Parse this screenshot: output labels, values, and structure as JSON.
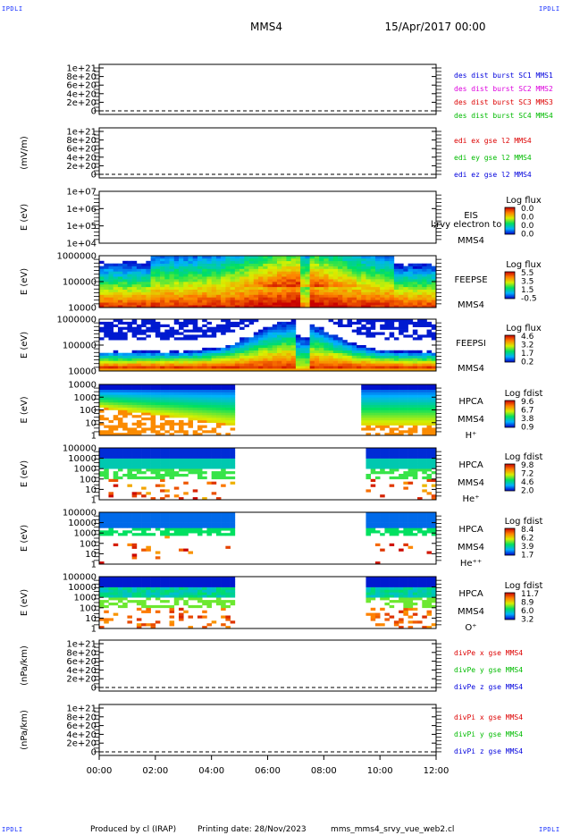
{
  "header": {
    "spacecraft": "MMS4",
    "date": "15/Apr/2017 00:00",
    "corner_label": "IPDLI"
  },
  "footer": {
    "produced_by": "Produced by cl (IRAP)",
    "printing_date": "Printing date: 28/Nov/2023",
    "script_name": "mms_mms4_srvy_vue_web2.cl"
  },
  "time_axis": {
    "ticks": [
      "00:00",
      "02:00",
      "04:00",
      "06:00",
      "08:00",
      "10:00",
      "12:00"
    ],
    "range_hours": [
      0,
      12
    ]
  },
  "colors": {
    "blue": "#0000dd",
    "magenta": "#dd00dd",
    "red": "#dd0000",
    "green": "#00bb00"
  },
  "chart_data": [
    {
      "type": "line",
      "id": "panel-des-dist",
      "ylabel": "",
      "yticks": [
        "1e+21",
        "8e+20",
        "6e+20",
        "4e+20",
        "2e+20",
        "0"
      ],
      "ylim": [
        0,
        1e+21
      ],
      "zero_dashed_line": true,
      "legend": [
        {
          "text": "des dist burst SC1 MMS1",
          "color": "#0000dd"
        },
        {
          "text": "des dist burst SC2 MMS2",
          "color": "#dd00dd"
        },
        {
          "text": "des dist burst SC3 MMS3",
          "color": "#dd0000"
        },
        {
          "text": "des dist burst SC4 MMS4",
          "color": "#00bb00"
        }
      ],
      "series": []
    },
    {
      "type": "line",
      "id": "panel-edi",
      "ylabel": "(mV/m)",
      "yticks": [
        "1e+21",
        "8e+20",
        "6e+20",
        "4e+20",
        "2e+20",
        "0"
      ],
      "ylim": [
        0,
        1e+21
      ],
      "zero_dashed_line": true,
      "legend": [
        {
          "text": "edi ex gse l2 MMS4",
          "color": "#dd0000"
        },
        {
          "text": "edi ey gse l2 MMS4",
          "color": "#00bb00"
        },
        {
          "text": "edi ez gse l2 MMS4",
          "color": "#0000dd"
        }
      ],
      "series": []
    },
    {
      "type": "heatmap",
      "id": "panel-eis",
      "ylabel": "E (eV)",
      "yticks": [
        "1e+07",
        "1e+06",
        "1e+05",
        "1e+04"
      ],
      "log_y": true,
      "right_labels": [
        "EIS",
        "MMS4"
      ],
      "overlay_text": "l;rvy electron to",
      "colorbar": {
        "title": "Log flux",
        "ticks": [
          "0.0",
          "0.0",
          "0.0",
          "0.0"
        ]
      },
      "pattern": "empty"
    },
    {
      "type": "heatmap",
      "id": "panel-feepse",
      "ylabel": "E (eV)",
      "yticks": [
        "1000000",
        "100000",
        "10000"
      ],
      "log_y": true,
      "right_labels": [
        "FEEPSE",
        "MMS4"
      ],
      "colorbar": {
        "title": "Log flux",
        "ticks": [
          "5.5",
          "3.5",
          "1.5",
          "-0.5"
        ]
      },
      "pattern": "feepse"
    },
    {
      "type": "heatmap",
      "id": "panel-feepsi",
      "ylabel": "E (eV)",
      "yticks": [
        "1000000",
        "100000",
        "10000"
      ],
      "log_y": true,
      "right_labels": [
        "FEEPSI",
        "MMS4"
      ],
      "colorbar": {
        "title": "Log flux",
        "ticks": [
          "4.6",
          "3.2",
          "1.7",
          "0.2"
        ]
      },
      "pattern": "feepsi"
    },
    {
      "type": "heatmap",
      "id": "panel-hpca-h",
      "ylabel": "E (eV)",
      "yticks": [
        "10000",
        "1000",
        "100",
        "10",
        "1"
      ],
      "log_y": true,
      "right_labels": [
        "HPCA",
        "MMS4",
        "H⁺"
      ],
      "colorbar": {
        "title": "Log fdist",
        "ticks": [
          "9.6",
          "6.7",
          "3.8",
          "0.9"
        ]
      },
      "pattern": "hpca-h",
      "gap_hours": [
        4.9,
        9.4
      ]
    },
    {
      "type": "heatmap",
      "id": "panel-hpca-he",
      "ylabel": "E (eV)",
      "yticks": [
        "100000",
        "10000",
        "1000",
        "100",
        "10",
        "1"
      ],
      "log_y": true,
      "right_labels": [
        "HPCA",
        "MMS4",
        "He⁺"
      ],
      "colorbar": {
        "title": "Log fdist",
        "ticks": [
          "9.8",
          "7.2",
          "4.6",
          "2.0"
        ]
      },
      "pattern": "hpca-he",
      "gap_hours": [
        4.9,
        9.5
      ]
    },
    {
      "type": "heatmap",
      "id": "panel-hpca-hepp",
      "ylabel": "E (eV)",
      "yticks": [
        "100000",
        "10000",
        "1000",
        "100",
        "10",
        "1"
      ],
      "log_y": true,
      "right_labels": [
        "HPCA",
        "MMS4",
        "He⁺⁺"
      ],
      "colorbar": {
        "title": "Log fdist",
        "ticks": [
          "8.4",
          "6.2",
          "3.9",
          "1.7"
        ]
      },
      "pattern": "hpca-hepp",
      "gap_hours": [
        4.9,
        9.5
      ]
    },
    {
      "type": "heatmap",
      "id": "panel-hpca-o",
      "ylabel": "E (eV)",
      "yticks": [
        "100000",
        "10000",
        "1000",
        "100",
        "10",
        "1"
      ],
      "log_y": true,
      "right_labels": [
        "HPCA",
        "MMS4",
        "O⁺"
      ],
      "colorbar": {
        "title": "Log fdist",
        "ticks": [
          "11.7",
          "8.9",
          "6.0",
          "3.2"
        ]
      },
      "pattern": "hpca-o",
      "gap_hours": [
        4.9,
        9.5
      ]
    },
    {
      "type": "line",
      "id": "panel-divpe",
      "ylabel": "(nPa/km)",
      "yticks": [
        "1e+21",
        "8e+20",
        "6e+20",
        "4e+20",
        "2e+20",
        "0"
      ],
      "ylim": [
        0,
        1e+21
      ],
      "zero_dashed_line": true,
      "legend": [
        {
          "text": "divPe x gse MMS4",
          "color": "#dd0000"
        },
        {
          "text": "divPe y gse MMS4",
          "color": "#00bb00"
        },
        {
          "text": "divPe z gse MMS4",
          "color": "#0000dd"
        }
      ],
      "series": []
    },
    {
      "type": "line",
      "id": "panel-divpi",
      "ylabel": "(nPa/km)",
      "yticks": [
        "1e+21",
        "8e+20",
        "6e+20",
        "4e+20",
        "2e+20",
        "0"
      ],
      "ylim": [
        0,
        1e+21
      ],
      "zero_dashed_line": true,
      "legend": [
        {
          "text": "divPi x gse MMS4",
          "color": "#dd0000"
        },
        {
          "text": "divPi y gse MMS4",
          "color": "#00bb00"
        },
        {
          "text": "divPi z gse MMS4",
          "color": "#0000dd"
        }
      ],
      "series": []
    }
  ]
}
